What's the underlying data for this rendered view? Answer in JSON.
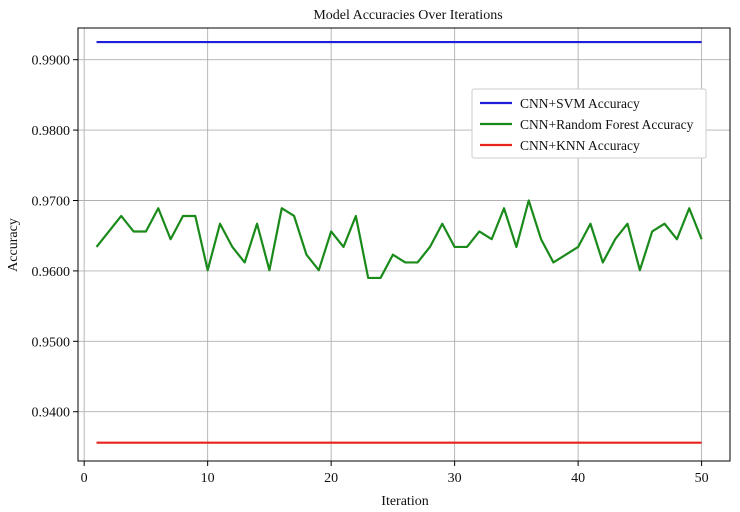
{
  "chart_data": {
    "type": "line",
    "title": "Model Accuracies Over Iterations",
    "xlabel": "Iteration",
    "ylabel": "Accuracy",
    "xlim": [
      -0.5,
      52.3
    ],
    "ylim": [
      0.933,
      0.9945
    ],
    "xticks": [
      0,
      10,
      20,
      30,
      40,
      50
    ],
    "yticks": [
      0.94,
      0.95,
      0.96,
      0.97,
      0.98,
      0.99
    ],
    "ytick_labels": [
      "0.9400",
      "0.9500",
      "0.9600",
      "0.9700",
      "0.9800",
      "0.9900"
    ],
    "xtick_labels": [
      "0",
      "10",
      "20",
      "30",
      "40",
      "50"
    ],
    "grid": true,
    "legend_position": "upper-right",
    "x": [
      1,
      2,
      3,
      4,
      5,
      6,
      7,
      8,
      9,
      10,
      11,
      12,
      13,
      14,
      15,
      16,
      17,
      18,
      19,
      20,
      21,
      22,
      23,
      24,
      25,
      26,
      27,
      28,
      29,
      30,
      31,
      32,
      33,
      34,
      35,
      36,
      37,
      38,
      39,
      40,
      41,
      42,
      43,
      44,
      45,
      46,
      47,
      48,
      49,
      50
    ],
    "series": [
      {
        "name": "CNN+SVM Accuracy",
        "color": "#1f1fdb",
        "values": [
          0.9925,
          0.9925,
          0.9925,
          0.9925,
          0.9925,
          0.9925,
          0.9925,
          0.9925,
          0.9925,
          0.9925,
          0.9925,
          0.9925,
          0.9925,
          0.9925,
          0.9925,
          0.9925,
          0.9925,
          0.9925,
          0.9925,
          0.9925,
          0.9925,
          0.9925,
          0.9925,
          0.9925,
          0.9925,
          0.9925,
          0.9925,
          0.9925,
          0.9925,
          0.9925,
          0.9925,
          0.9925,
          0.9925,
          0.9925,
          0.9925,
          0.9925,
          0.9925,
          0.9925,
          0.9925,
          0.9925,
          0.9925,
          0.9925,
          0.9925,
          0.9925,
          0.9925,
          0.9925,
          0.9925,
          0.9925,
          0.9925,
          0.9925
        ]
      },
      {
        "name": "CNN+Random Forest Accuracy",
        "color": "#1a8a1a",
        "values": [
          0.9634,
          0.9656,
          0.9678,
          0.9656,
          0.9656,
          0.9689,
          0.9645,
          0.9678,
          0.9678,
          0.9601,
          0.9667,
          0.9634,
          0.9612,
          0.9667,
          0.9601,
          0.9689,
          0.9678,
          0.9623,
          0.9601,
          0.9656,
          0.9634,
          0.9678,
          0.959,
          0.959,
          0.9623,
          0.9612,
          0.9612,
          0.9634,
          0.9667,
          0.9634,
          0.9634,
          0.9656,
          0.9645,
          0.9689,
          0.9634,
          0.97,
          0.9645,
          0.9612,
          0.9623,
          0.9634,
          0.9667,
          0.9612,
          0.9645,
          0.9667,
          0.9601,
          0.9656,
          0.9667,
          0.9645,
          0.9689,
          0.9645
        ]
      },
      {
        "name": "CNN+KNN Accuracy",
        "color": "#e8221c",
        "values": [
          0.9356,
          0.9356,
          0.9356,
          0.9356,
          0.9356,
          0.9356,
          0.9356,
          0.9356,
          0.9356,
          0.9356,
          0.9356,
          0.9356,
          0.9356,
          0.9356,
          0.9356,
          0.9356,
          0.9356,
          0.9356,
          0.9356,
          0.9356,
          0.9356,
          0.9356,
          0.9356,
          0.9356,
          0.9356,
          0.9356,
          0.9356,
          0.9356,
          0.9356,
          0.9356,
          0.9356,
          0.9356,
          0.9356,
          0.9356,
          0.9356,
          0.9356,
          0.9356,
          0.9356,
          0.9356,
          0.9356,
          0.9356,
          0.9356,
          0.9356,
          0.9356,
          0.9356,
          0.9356,
          0.9356,
          0.9356,
          0.9356,
          0.9356
        ]
      }
    ]
  }
}
